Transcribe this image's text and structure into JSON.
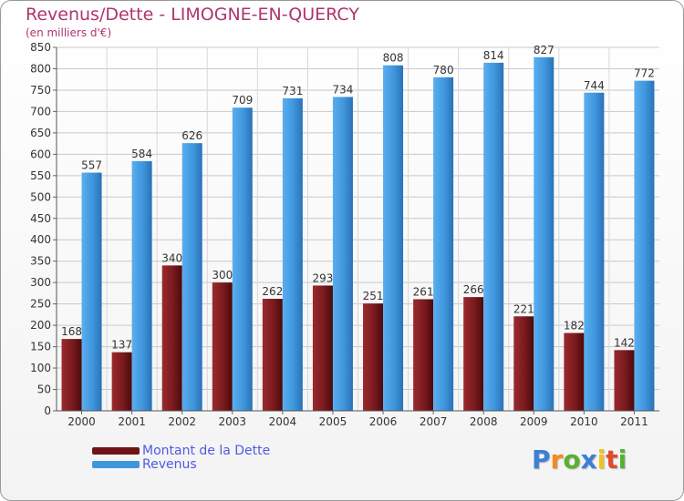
{
  "chart_data": {
    "type": "bar",
    "title": "Revenus/Dette - LIMOGNE-EN-QUERCY",
    "subtitle": "(en milliers d'€)",
    "categories": [
      "2000",
      "2001",
      "2002",
      "2003",
      "2004",
      "2005",
      "2006",
      "2007",
      "2008",
      "2009",
      "2010",
      "2011"
    ],
    "series": [
      {
        "name": "Montant de la Dette",
        "color": "#7a1a1a",
        "values": [
          168,
          137,
          340,
          300,
          262,
          293,
          251,
          261,
          266,
          221,
          182,
          142
        ]
      },
      {
        "name": "Revenus",
        "color": "#3f96dc",
        "values": [
          557,
          584,
          626,
          709,
          731,
          734,
          808,
          780,
          814,
          827,
          744,
          772
        ]
      }
    ],
    "ylim": [
      0,
      850
    ],
    "yticks": [
      0,
      50,
      100,
      150,
      200,
      250,
      300,
      350,
      400,
      450,
      500,
      550,
      600,
      650,
      700,
      750,
      800,
      850
    ],
    "grid": true,
    "legend_position": "bottom-left"
  },
  "logo": {
    "letters": [
      "P",
      "r",
      "o",
      "x",
      "i",
      "t",
      "i"
    ],
    "colors": [
      "#3b7fd6",
      "#f28a1c",
      "#58b030",
      "#3b7fd6",
      "#f2c21c",
      "#e04a2a",
      "#58b030"
    ]
  }
}
